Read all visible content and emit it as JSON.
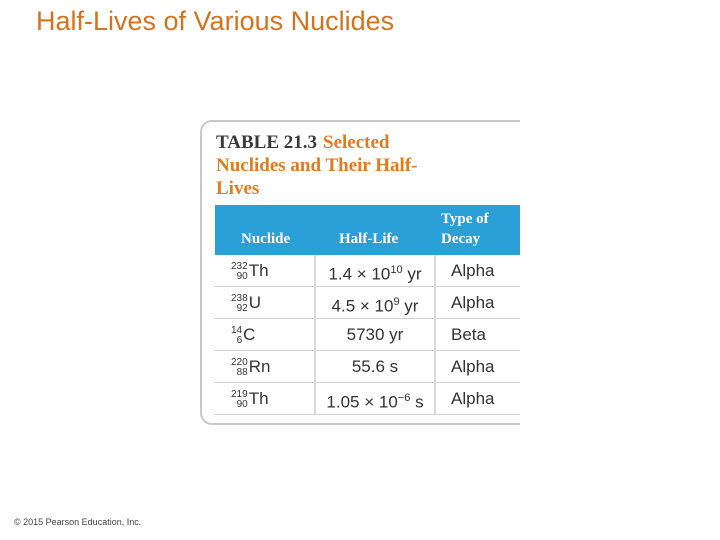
{
  "title": "Half-Lives of Various Nuclides",
  "table": {
    "label": "TABLE 21.3",
    "caption": "Selected Nuclides and Their Half-Lives",
    "headers": [
      "Nuclide",
      "Half-Life",
      "Type of Decay"
    ],
    "rows": [
      {
        "nuclide": {
          "mass": "232",
          "atomic": "90",
          "symbol": "Th"
        },
        "half_life": {
          "base": "1.4 × 10",
          "exponent": "10",
          "unit": "yr"
        },
        "decay": "Alpha"
      },
      {
        "nuclide": {
          "mass": "238",
          "atomic": "92",
          "symbol": "U"
        },
        "half_life": {
          "base": "4.5 × 10",
          "exponent": "9",
          "unit": "yr"
        },
        "decay": "Alpha"
      },
      {
        "nuclide": {
          "mass": "14",
          "atomic": "6",
          "symbol": "C"
        },
        "half_life": {
          "text": "5730 yr"
        },
        "decay": "Beta"
      },
      {
        "nuclide": {
          "mass": "220",
          "atomic": "88",
          "symbol": "Rn"
        },
        "half_life": {
          "text": "55.6 s"
        },
        "decay": "Alpha"
      },
      {
        "nuclide": {
          "mass": "219",
          "atomic": "90",
          "symbol": "Th"
        },
        "half_life": {
          "base": "1.05 × 10",
          "exponent": "−6",
          "unit": "s"
        },
        "decay": "Alpha"
      }
    ]
  },
  "footer": "© 2015 Pearson Education, Inc."
}
